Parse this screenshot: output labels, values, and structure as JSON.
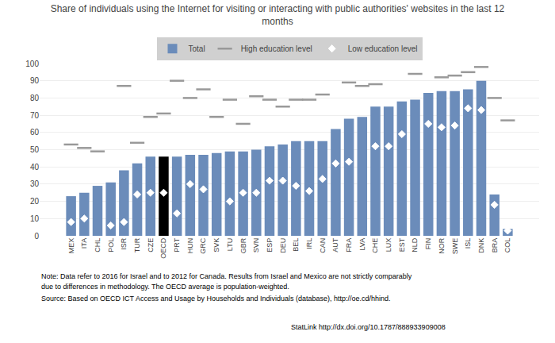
{
  "chart_data": {
    "type": "bar",
    "title": "Share of individuals using the Internet for visiting or interacting with public authorities' websites in the last 12\nmonths",
    "categories": [
      "MEX",
      "ITA",
      "CHL",
      "POL",
      "ISR",
      "TUR",
      "CZE",
      "OECD",
      "PRT",
      "HUN",
      "GRC",
      "SVK",
      "LTU",
      "GBR",
      "SVN",
      "ESP",
      "DEU",
      "BEL",
      "IRL",
      "CAN",
      "AUT",
      "FRA",
      "LVA",
      "CHE",
      "LUX",
      "EST",
      "NLD",
      "FIN",
      "NOR",
      "SWE",
      "ISL",
      "DNK",
      "BRA",
      "COL"
    ],
    "series": [
      {
        "name": "Total",
        "type": "bar",
        "color": "#6b8cba",
        "colors": [
          "#6b8cba",
          "#6b8cba",
          "#6b8cba",
          "#6b8cba",
          "#6b8cba",
          "#6b8cba",
          "#6b8cba",
          "#000000",
          "#6b8cba",
          "#6b8cba",
          "#6b8cba",
          "#6b8cba",
          "#6b8cba",
          "#6b8cba",
          "#6b8cba",
          "#6b8cba",
          "#6b8cba",
          "#6b8cba",
          "#6b8cba",
          "#6b8cba",
          "#6b8cba",
          "#6b8cba",
          "#6b8cba",
          "#6b8cba",
          "#6b8cba",
          "#6b8cba",
          "#6b8cba",
          "#6b8cba",
          "#6b8cba",
          "#6b8cba",
          "#6b8cba",
          "#6b8cba",
          "#6b8cba",
          "#6b8cba"
        ],
        "values": [
          23,
          25,
          29,
          31,
          38,
          42,
          46,
          46,
          46,
          47,
          47,
          48,
          49,
          49,
          50,
          52,
          53,
          55,
          55,
          55,
          62,
          68,
          69,
          75,
          75,
          78,
          79,
          83,
          84,
          84,
          85,
          90,
          24,
          4
        ]
      },
      {
        "name": "High education level",
        "type": "scatter",
        "marker": "dash",
        "color": "#999999",
        "values": [
          53,
          51,
          49,
          null,
          87,
          54,
          69,
          71,
          90,
          80,
          85,
          69,
          79,
          65,
          81,
          79,
          75,
          79,
          79,
          82,
          null,
          89,
          87,
          88,
          null,
          null,
          94,
          null,
          92,
          93,
          95,
          98,
          80,
          67
        ]
      },
      {
        "name": "Low education level",
        "type": "scatter",
        "marker": "diamond",
        "color": "#ffffff",
        "values": [
          8,
          10,
          null,
          6,
          8,
          24,
          25,
          25,
          13,
          30,
          27,
          null,
          20,
          25,
          25,
          32,
          32,
          29,
          26,
          33,
          42,
          43,
          null,
          52,
          52,
          59,
          null,
          65,
          63,
          64,
          74,
          73,
          18,
          3
        ]
      }
    ],
    "ylim": [
      0,
      100
    ],
    "yticks": [
      0,
      10,
      20,
      30,
      40,
      50,
      60,
      70,
      80,
      90,
      100
    ],
    "grid": true,
    "annotations": [
      "Note: Data refer to 2016 for Israel and to 2012 for Canada. Results from Israel and Mexico are not strictly comparably",
      "due to differences in methodology. The OECD average is population-weighted.",
      "Source: Based on OECD ICT Access and Usage by Households and Individuals (database), http://oe.cd/hhind.",
      "StatLink http://dx.doi.org/10.1787/888933909008"
    ]
  }
}
